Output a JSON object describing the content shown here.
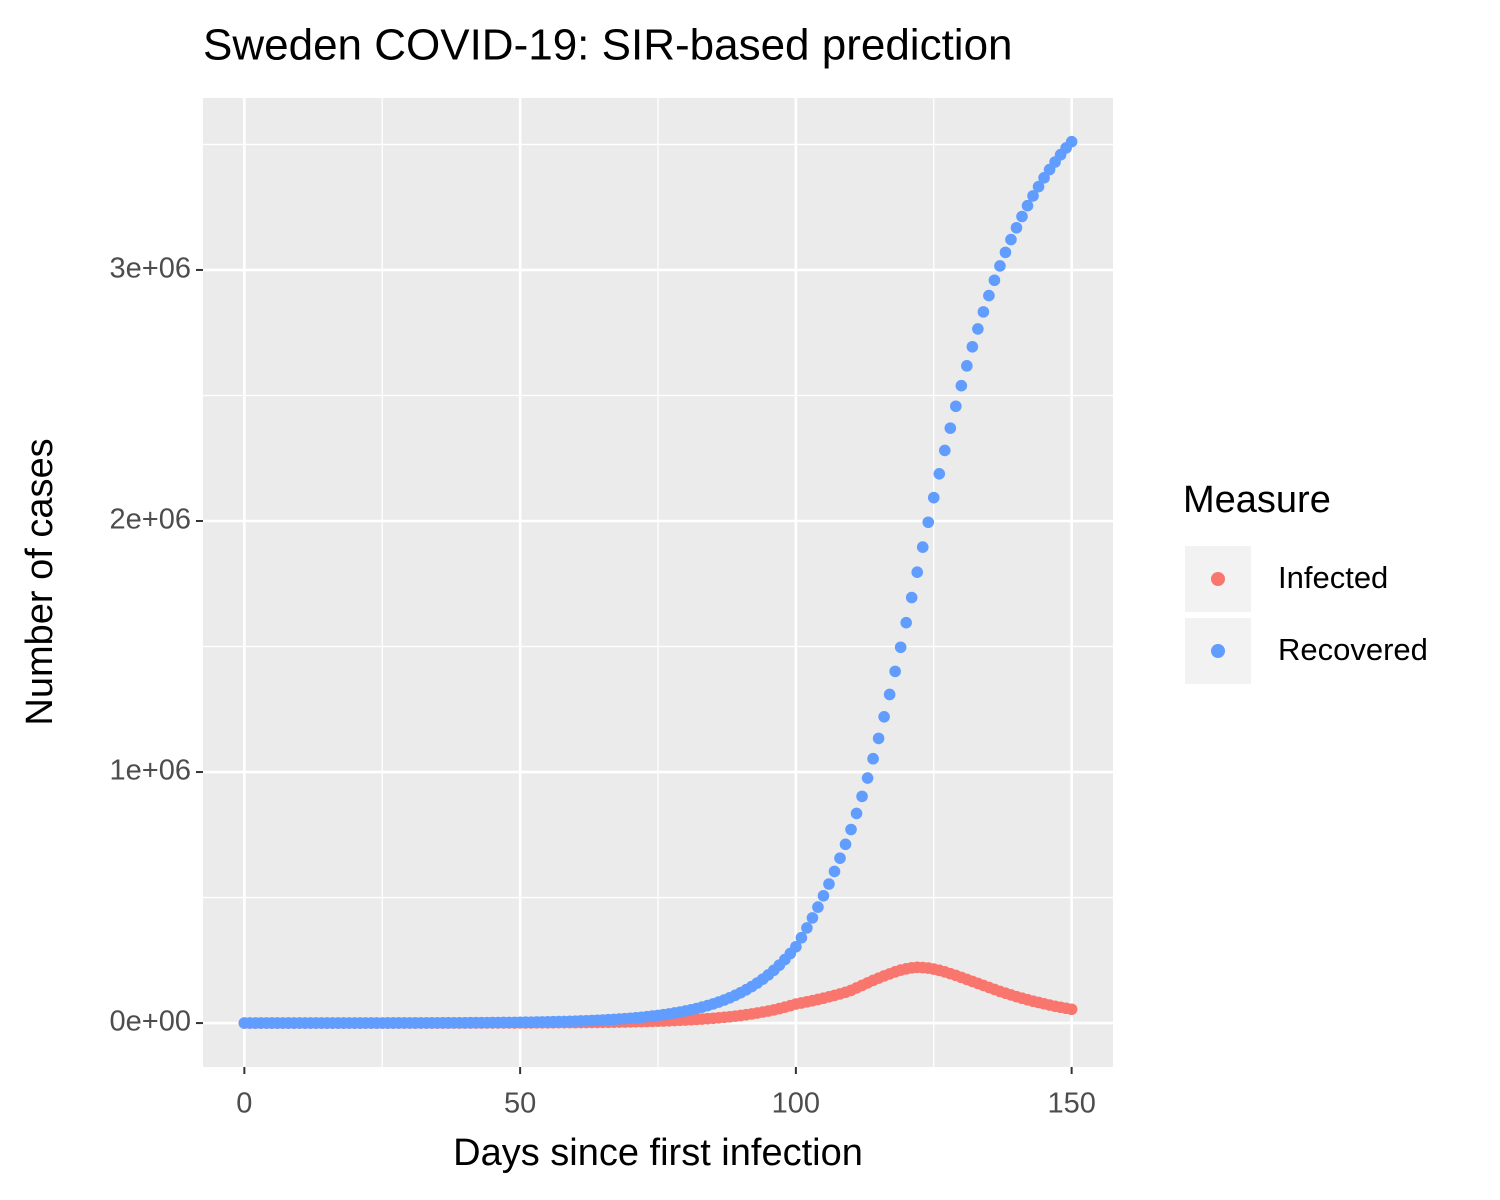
{
  "chart_data": {
    "type": "scatter",
    "title": "Sweden COVID-19: SIR-based prediction",
    "x_label": "Days since first infection",
    "y_label": "Number of cases",
    "legend_title": "Measure",
    "legend_position": "right",
    "grid": true,
    "xlim": [
      -7.5,
      157.5
    ],
    "xticks": [
      0,
      50,
      100,
      150
    ],
    "xticks_minor": [
      25,
      75,
      125
    ],
    "ylim": [
      -175000,
      3685000
    ],
    "yticks": [
      {
        "value": 0,
        "label": "0e+00"
      },
      {
        "value": 1000000,
        "label": "1e+06"
      },
      {
        "value": 2000000,
        "label": "2e+06"
      },
      {
        "value": 3000000,
        "label": "3e+06"
      }
    ],
    "yticks_minor": [
      500000,
      1500000,
      2500000,
      3500000
    ],
    "x": [
      0,
      1,
      2,
      3,
      4,
      5,
      6,
      7,
      8,
      9,
      10,
      11,
      12,
      13,
      14,
      15,
      16,
      17,
      18,
      19,
      20,
      21,
      22,
      23,
      24,
      25,
      26,
      27,
      28,
      29,
      30,
      31,
      32,
      33,
      34,
      35,
      36,
      37,
      38,
      39,
      40,
      41,
      42,
      43,
      44,
      45,
      46,
      47,
      48,
      49,
      50,
      51,
      52,
      53,
      54,
      55,
      56,
      57,
      58,
      59,
      60,
      61,
      62,
      63,
      64,
      65,
      66,
      67,
      68,
      69,
      70,
      71,
      72,
      73,
      74,
      75,
      76,
      77,
      78,
      79,
      80,
      81,
      82,
      83,
      84,
      85,
      86,
      87,
      88,
      89,
      90,
      91,
      92,
      93,
      94,
      95,
      96,
      97,
      98,
      99,
      100,
      101,
      102,
      103,
      104,
      105,
      106,
      107,
      108,
      109,
      110,
      111,
      112,
      113,
      114,
      115,
      116,
      117,
      118,
      119,
      120,
      121,
      122,
      123,
      124,
      125,
      126,
      127,
      128,
      129,
      130,
      131,
      132,
      133,
      134,
      135,
      136,
      137,
      138,
      139,
      140,
      141,
      142,
      143,
      144,
      145,
      146,
      147,
      148,
      149,
      150
    ],
    "series": [
      {
        "name": "Infected",
        "color": "#F8766D",
        "values": [
          8,
          8,
          9,
          10,
          11,
          12,
          13,
          15,
          16,
          18,
          19,
          21,
          23,
          25,
          28,
          31,
          34,
          37,
          40,
          44,
          48,
          53,
          58,
          64,
          70,
          77,
          84,
          92,
          101,
          111,
          121,
          133,
          145,
          159,
          175,
          192,
          210,
          230,
          253,
          277,
          304,
          333,
          365,
          401,
          439,
          482,
          528,
          579,
          635,
          696,
          764,
          838,
          918,
          1007,
          1104,
          1210,
          1327,
          1455,
          1595,
          1749,
          1916,
          2101,
          2303,
          2525,
          2769,
          3036,
          3328,
          3649,
          4001,
          4386,
          4809,
          5272,
          5780,
          6337,
          6948,
          7618,
          8352,
          9157,
          10040,
          11010,
          12070,
          13230,
          14500,
          15900,
          17440,
          19120,
          20960,
          22980,
          25190,
          27620,
          30280,
          33200,
          36400,
          39910,
          43760,
          47980,
          52600,
          57670,
          63230,
          69320,
          76000,
          80000,
          84500,
          89000,
          94000,
          99000,
          104500,
          110000,
          116000,
          122500,
          130000,
          140000,
          150000,
          160000,
          170000,
          179000,
          188000,
          196000,
          204000,
          211000,
          216000,
          220000,
          222000,
          221000,
          219000,
          215000,
          210000,
          204000,
          197000,
          190000,
          182000,
          174000,
          166000,
          158000,
          150000,
          142000,
          134000,
          126000,
          119000,
          112000,
          105000,
          99000,
          93000,
          87000,
          82000,
          77000,
          72000,
          67000,
          63000,
          59000,
          55000
        ]
      },
      {
        "name": "Recovered",
        "color": "#619CFF",
        "values": [
          32,
          32,
          36,
          40,
          44,
          48,
          52,
          60,
          64,
          72,
          76,
          84,
          92,
          100,
          112,
          124,
          136,
          148,
          160,
          176,
          192,
          212,
          232,
          256,
          280,
          308,
          336,
          368,
          404,
          444,
          484,
          532,
          580,
          636,
          700,
          768,
          840,
          920,
          1012,
          1108,
          1216,
          1332,
          1460,
          1604,
          1756,
          1928,
          2112,
          2316,
          2540,
          2784,
          3056,
          3352,
          3672,
          4028,
          4416,
          4840,
          5308,
          5820,
          6380,
          6996,
          7664,
          8404,
          9212,
          10100,
          11076,
          12144,
          13312,
          14596,
          16004,
          17544,
          19236,
          21088,
          23120,
          25348,
          27792,
          30472,
          33408,
          36628,
          40160,
          44040,
          48280,
          52920,
          58000,
          63600,
          69760,
          76480,
          83840,
          91920,
          100760,
          110480,
          121120,
          132800,
          145600,
          159640,
          175040,
          191920,
          210400,
          230680,
          252920,
          277280,
          304000,
          340000,
          379000,
          419000,
          462000,
          507000,
          554000,
          604000,
          657000,
          712000,
          771000,
          835000,
          903000,
          976000,
          1053000,
          1134000,
          1220000,
          1309000,
          1401000,
          1497000,
          1595000,
          1695000,
          1796000,
          1896000,
          1995000,
          2093000,
          2188000,
          2281000,
          2370000,
          2457000,
          2539000,
          2618000,
          2694000,
          2765000,
          2833000,
          2898000,
          2959000,
          3016000,
          3070000,
          3121000,
          3168000,
          3213000,
          3256000,
          3295000,
          3332000,
          3367000,
          3400000,
          3430000,
          3459000,
          3486000,
          3511000
        ]
      }
    ]
  }
}
